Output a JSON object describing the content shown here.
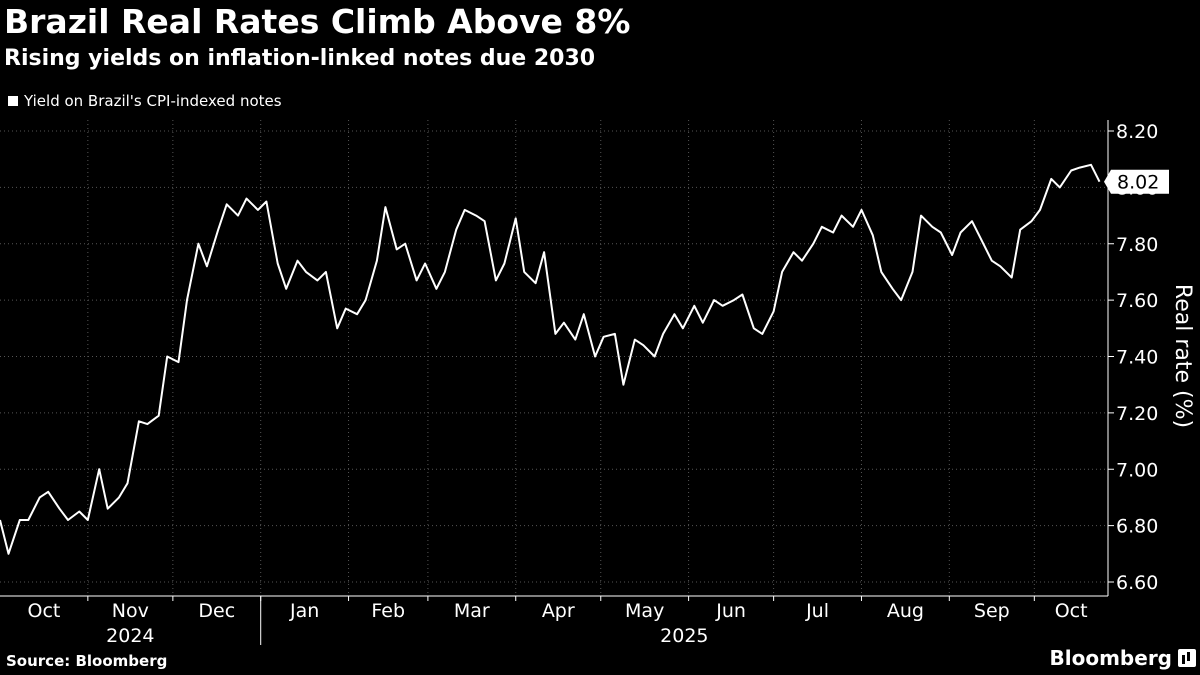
{
  "header": {
    "title": "Brazil Real Rates Climb Above 8%",
    "subtitle": "Rising yields on inflation-linked notes due 2030",
    "legend_label": "Yield on Brazil's CPI-indexed notes"
  },
  "footer": {
    "source": "Source: Bloomberg",
    "brand": "Bloomberg"
  },
  "colors": {
    "background": "#000000",
    "line": "#ffffff",
    "grid": "#555555",
    "label_box": "#ffffff",
    "label_text": "#000000"
  },
  "chart_data": {
    "type": "line",
    "title": "Brazil Real Rates Climb Above 8%",
    "subtitle": "Rising yields on inflation-linked notes due 2030",
    "xlabel": "",
    "ylabel": "Real rate (%)",
    "ylim": [
      6.6,
      8.2
    ],
    "yticks": [
      "8.20",
      "8.00",
      "7.80",
      "7.60",
      "7.40",
      "7.20",
      "7.00",
      "6.80",
      "6.60"
    ],
    "grid": true,
    "legend_placement": "top-left",
    "last_value_label": "8.02",
    "x_month_labels": [
      "Oct",
      "Nov",
      "Dec",
      "Jan",
      "Feb",
      "Mar",
      "Apr",
      "May",
      "Jun",
      "Jul",
      "Aug",
      "Sep",
      "Oct"
    ],
    "x_year_labels": [
      "2024",
      "2025"
    ],
    "series": [
      {
        "name": "Yield on Brazil's CPI-indexed notes",
        "x": [
          "2024-10-01",
          "2024-10-04",
          "2024-10-08",
          "2024-10-11",
          "2024-10-15",
          "2024-10-18",
          "2024-10-22",
          "2024-10-25",
          "2024-10-29",
          "2024-11-01",
          "2024-11-05",
          "2024-11-08",
          "2024-11-12",
          "2024-11-15",
          "2024-11-19",
          "2024-11-22",
          "2024-11-26",
          "2024-11-29",
          "2024-12-03",
          "2024-12-06",
          "2024-12-10",
          "2024-12-13",
          "2024-12-17",
          "2024-12-20",
          "2024-12-24",
          "2024-12-27",
          "2024-12-31",
          "2025-01-03",
          "2025-01-07",
          "2025-01-10",
          "2025-01-14",
          "2025-01-17",
          "2025-01-21",
          "2025-01-24",
          "2025-01-28",
          "2025-01-31",
          "2025-02-04",
          "2025-02-07",
          "2025-02-11",
          "2025-02-14",
          "2025-02-18",
          "2025-02-21",
          "2025-02-25",
          "2025-02-28",
          "2025-03-04",
          "2025-03-07",
          "2025-03-11",
          "2025-03-14",
          "2025-03-18",
          "2025-03-21",
          "2025-03-25",
          "2025-03-28",
          "2025-04-01",
          "2025-04-04",
          "2025-04-08",
          "2025-04-11",
          "2025-04-15",
          "2025-04-18",
          "2025-04-22",
          "2025-04-25",
          "2025-04-29",
          "2025-05-02",
          "2025-05-06",
          "2025-05-09",
          "2025-05-13",
          "2025-05-16",
          "2025-05-20",
          "2025-05-23",
          "2025-05-27",
          "2025-05-30",
          "2025-06-03",
          "2025-06-06",
          "2025-06-10",
          "2025-06-13",
          "2025-06-17",
          "2025-06-20",
          "2025-06-24",
          "2025-06-27",
          "2025-07-01",
          "2025-07-04",
          "2025-07-08",
          "2025-07-11",
          "2025-07-15",
          "2025-07-18",
          "2025-07-22",
          "2025-07-25",
          "2025-07-29",
          "2025-08-01",
          "2025-08-05",
          "2025-08-08",
          "2025-08-12",
          "2025-08-15",
          "2025-08-19",
          "2025-08-22",
          "2025-08-26",
          "2025-08-29",
          "2025-09-02",
          "2025-09-05",
          "2025-09-09",
          "2025-09-12",
          "2025-09-16",
          "2025-09-19",
          "2025-09-23",
          "2025-09-26",
          "2025-09-30",
          "2025-10-03",
          "2025-10-07",
          "2025-10-10",
          "2025-10-14",
          "2025-10-17",
          "2025-10-21",
          "2025-10-24"
        ],
        "values": [
          6.82,
          6.7,
          6.82,
          6.82,
          6.9,
          6.92,
          6.86,
          6.82,
          6.85,
          6.82,
          7.0,
          6.86,
          6.9,
          6.95,
          7.17,
          7.16,
          7.19,
          7.4,
          7.38,
          7.6,
          7.8,
          7.72,
          7.85,
          7.94,
          7.9,
          7.96,
          7.92,
          7.95,
          7.73,
          7.64,
          7.74,
          7.7,
          7.67,
          7.7,
          7.5,
          7.57,
          7.55,
          7.6,
          7.74,
          7.93,
          7.78,
          7.8,
          7.67,
          7.73,
          7.64,
          7.7,
          7.85,
          7.92,
          7.9,
          7.88,
          7.67,
          7.73,
          7.89,
          7.7,
          7.66,
          7.77,
          7.48,
          7.52,
          7.46,
          7.55,
          7.4,
          7.47,
          7.48,
          7.3,
          7.46,
          7.44,
          7.4,
          7.48,
          7.55,
          7.5,
          7.58,
          7.52,
          7.6,
          7.58,
          7.6,
          7.62,
          7.5,
          7.48,
          7.56,
          7.7,
          7.77,
          7.74,
          7.8,
          7.86,
          7.84,
          7.9,
          7.86,
          7.92,
          7.83,
          7.7,
          7.64,
          7.6,
          7.7,
          7.9,
          7.86,
          7.84,
          7.76,
          7.84,
          7.88,
          7.82,
          7.74,
          7.72,
          7.68,
          7.85,
          7.88,
          7.92,
          8.03,
          8.0,
          8.06,
          8.07,
          8.08,
          8.02
        ]
      }
    ]
  }
}
